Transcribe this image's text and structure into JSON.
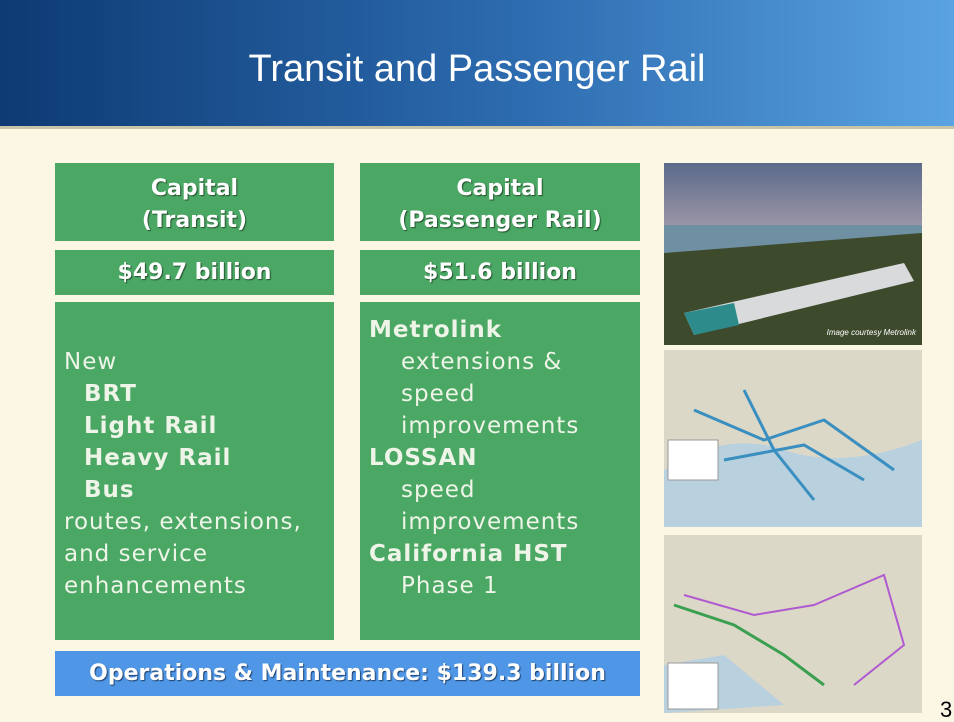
{
  "header": {
    "title": "Transit and Passenger Rail"
  },
  "transit": {
    "title": [
      "Capital",
      "(Transit)"
    ],
    "amount": "$49.7 billion",
    "intro": "New",
    "modes": [
      "BRT",
      "Light Rail",
      "Heavy Rail",
      "Bus"
    ],
    "outro": [
      "routes, extensions,",
      "and service",
      "enhancements"
    ]
  },
  "rail": {
    "title": [
      "Capital",
      "(Passenger Rail)"
    ],
    "amount": "$51.6 billion",
    "items": [
      {
        "name": "Metrolink",
        "detail": [
          "extensions &",
          "speed",
          "improvements"
        ]
      },
      {
        "name": "LOSSAN",
        "detail": [
          "speed",
          "improvements"
        ]
      },
      {
        "name": "California HST",
        "detail": [
          "Phase 1"
        ]
      }
    ]
  },
  "operations": "Operations & Maintenance: $139.3 billion",
  "photo_caption": "Image courtesy Metrolink",
  "page_number": "3"
}
